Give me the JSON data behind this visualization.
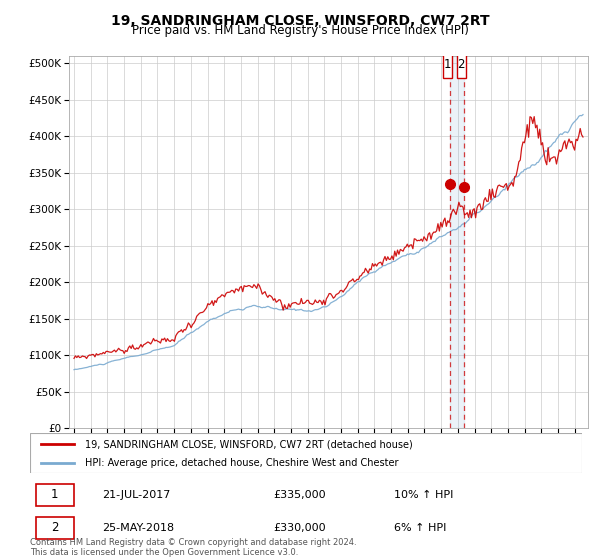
{
  "title": "19, SANDRINGHAM CLOSE, WINSFORD, CW7 2RT",
  "subtitle": "Price paid vs. HM Land Registry's House Price Index (HPI)",
  "legend_line1": "19, SANDRINGHAM CLOSE, WINSFORD, CW7 2RT (detached house)",
  "legend_line2": "HPI: Average price, detached house, Cheshire West and Chester",
  "annotation1_date": "21-JUL-2017",
  "annotation1_price": "£335,000",
  "annotation1_hpi": "10% ↑ HPI",
  "annotation2_date": "25-MAY-2018",
  "annotation2_price": "£330,000",
  "annotation2_hpi": "6% ↑ HPI",
  "footer": "Contains HM Land Registry data © Crown copyright and database right 2024.\nThis data is licensed under the Open Government Licence v3.0.",
  "yticks": [
    0,
    50000,
    100000,
    150000,
    200000,
    250000,
    300000,
    350000,
    400000,
    450000,
    500000
  ],
  "line1_color": "#cc0000",
  "line2_color": "#7aaad0",
  "annotation_color": "#cc0000",
  "grid_color": "#cccccc",
  "background_color": "#ffffff",
  "sale1_x": 2017.55,
  "sale1_y": 335000,
  "sale2_x": 2018.38,
  "sale2_y": 330000,
  "xmin": 1994.7,
  "xmax": 2025.8,
  "ymin": 0,
  "ymax": 510000
}
